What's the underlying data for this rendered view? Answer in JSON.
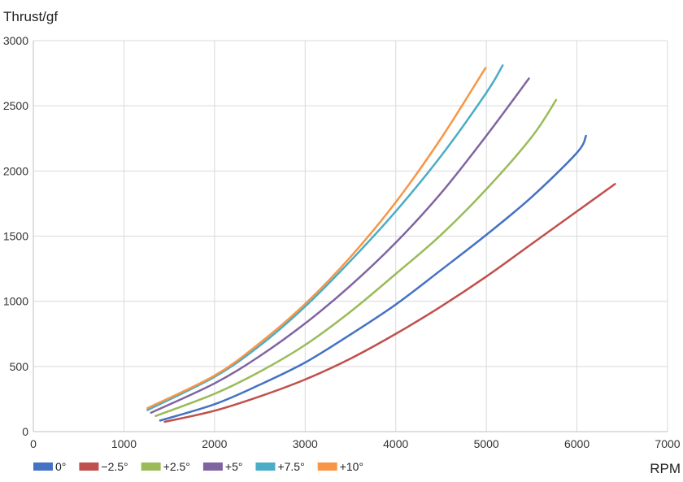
{
  "chart_data": {
    "type": "line",
    "title": "",
    "xlabel": "RPM",
    "ylabel": "Thrust/gf",
    "xlim": [
      0,
      7000
    ],
    "ylim": [
      0,
      3000
    ],
    "xticks": [
      0,
      1000,
      2000,
      3000,
      4000,
      5000,
      6000,
      7000
    ],
    "yticks": [
      0,
      500,
      1000,
      1500,
      2000,
      2500,
      3000
    ],
    "grid": true,
    "legend_position": "bottom-left",
    "series": [
      {
        "name": "0°",
        "color": "#4472C4",
        "x": [
          1400,
          2000,
          2500,
          3000,
          3500,
          4000,
          4500,
          5000,
          5500,
          6000,
          6100
        ],
        "y": [
          85,
          210,
          360,
          530,
          745,
          975,
          1240,
          1510,
          1800,
          2140,
          2270
        ]
      },
      {
        "name": "−2.5°",
        "color": "#C0504D",
        "x": [
          1450,
          2000,
          2500,
          3000,
          3500,
          4000,
          4500,
          5000,
          5500,
          6000,
          6420
        ],
        "y": [
          75,
          160,
          270,
          400,
          560,
          750,
          960,
          1190,
          1440,
          1690,
          1900
        ]
      },
      {
        "name": "+2.5°",
        "color": "#9BBB59",
        "x": [
          1350,
          2000,
          2500,
          3000,
          3500,
          4000,
          4500,
          5000,
          5500,
          5770
        ],
        "y": [
          120,
          290,
          460,
          665,
          920,
          1210,
          1510,
          1860,
          2260,
          2545
        ]
      },
      {
        "name": "+5°",
        "color": "#8064A2",
        "x": [
          1300,
          2000,
          2500,
          3000,
          3500,
          4000,
          4500,
          5000,
          5470
        ],
        "y": [
          145,
          370,
          580,
          830,
          1120,
          1450,
          1830,
          2270,
          2710
        ]
      },
      {
        "name": "+7.5°",
        "color": "#4BACC6",
        "x": [
          1260,
          2000,
          2500,
          3000,
          3500,
          4000,
          4500,
          5000,
          5180
        ],
        "y": [
          165,
          420,
          660,
          960,
          1310,
          1690,
          2115,
          2600,
          2810
        ]
      },
      {
        "name": "+10°",
        "color": "#F79646",
        "x": [
          1260,
          2000,
          2500,
          3000,
          3500,
          4000,
          4500,
          4990
        ],
        "y": [
          180,
          430,
          680,
          980,
          1340,
          1760,
          2250,
          2790
        ]
      }
    ]
  }
}
